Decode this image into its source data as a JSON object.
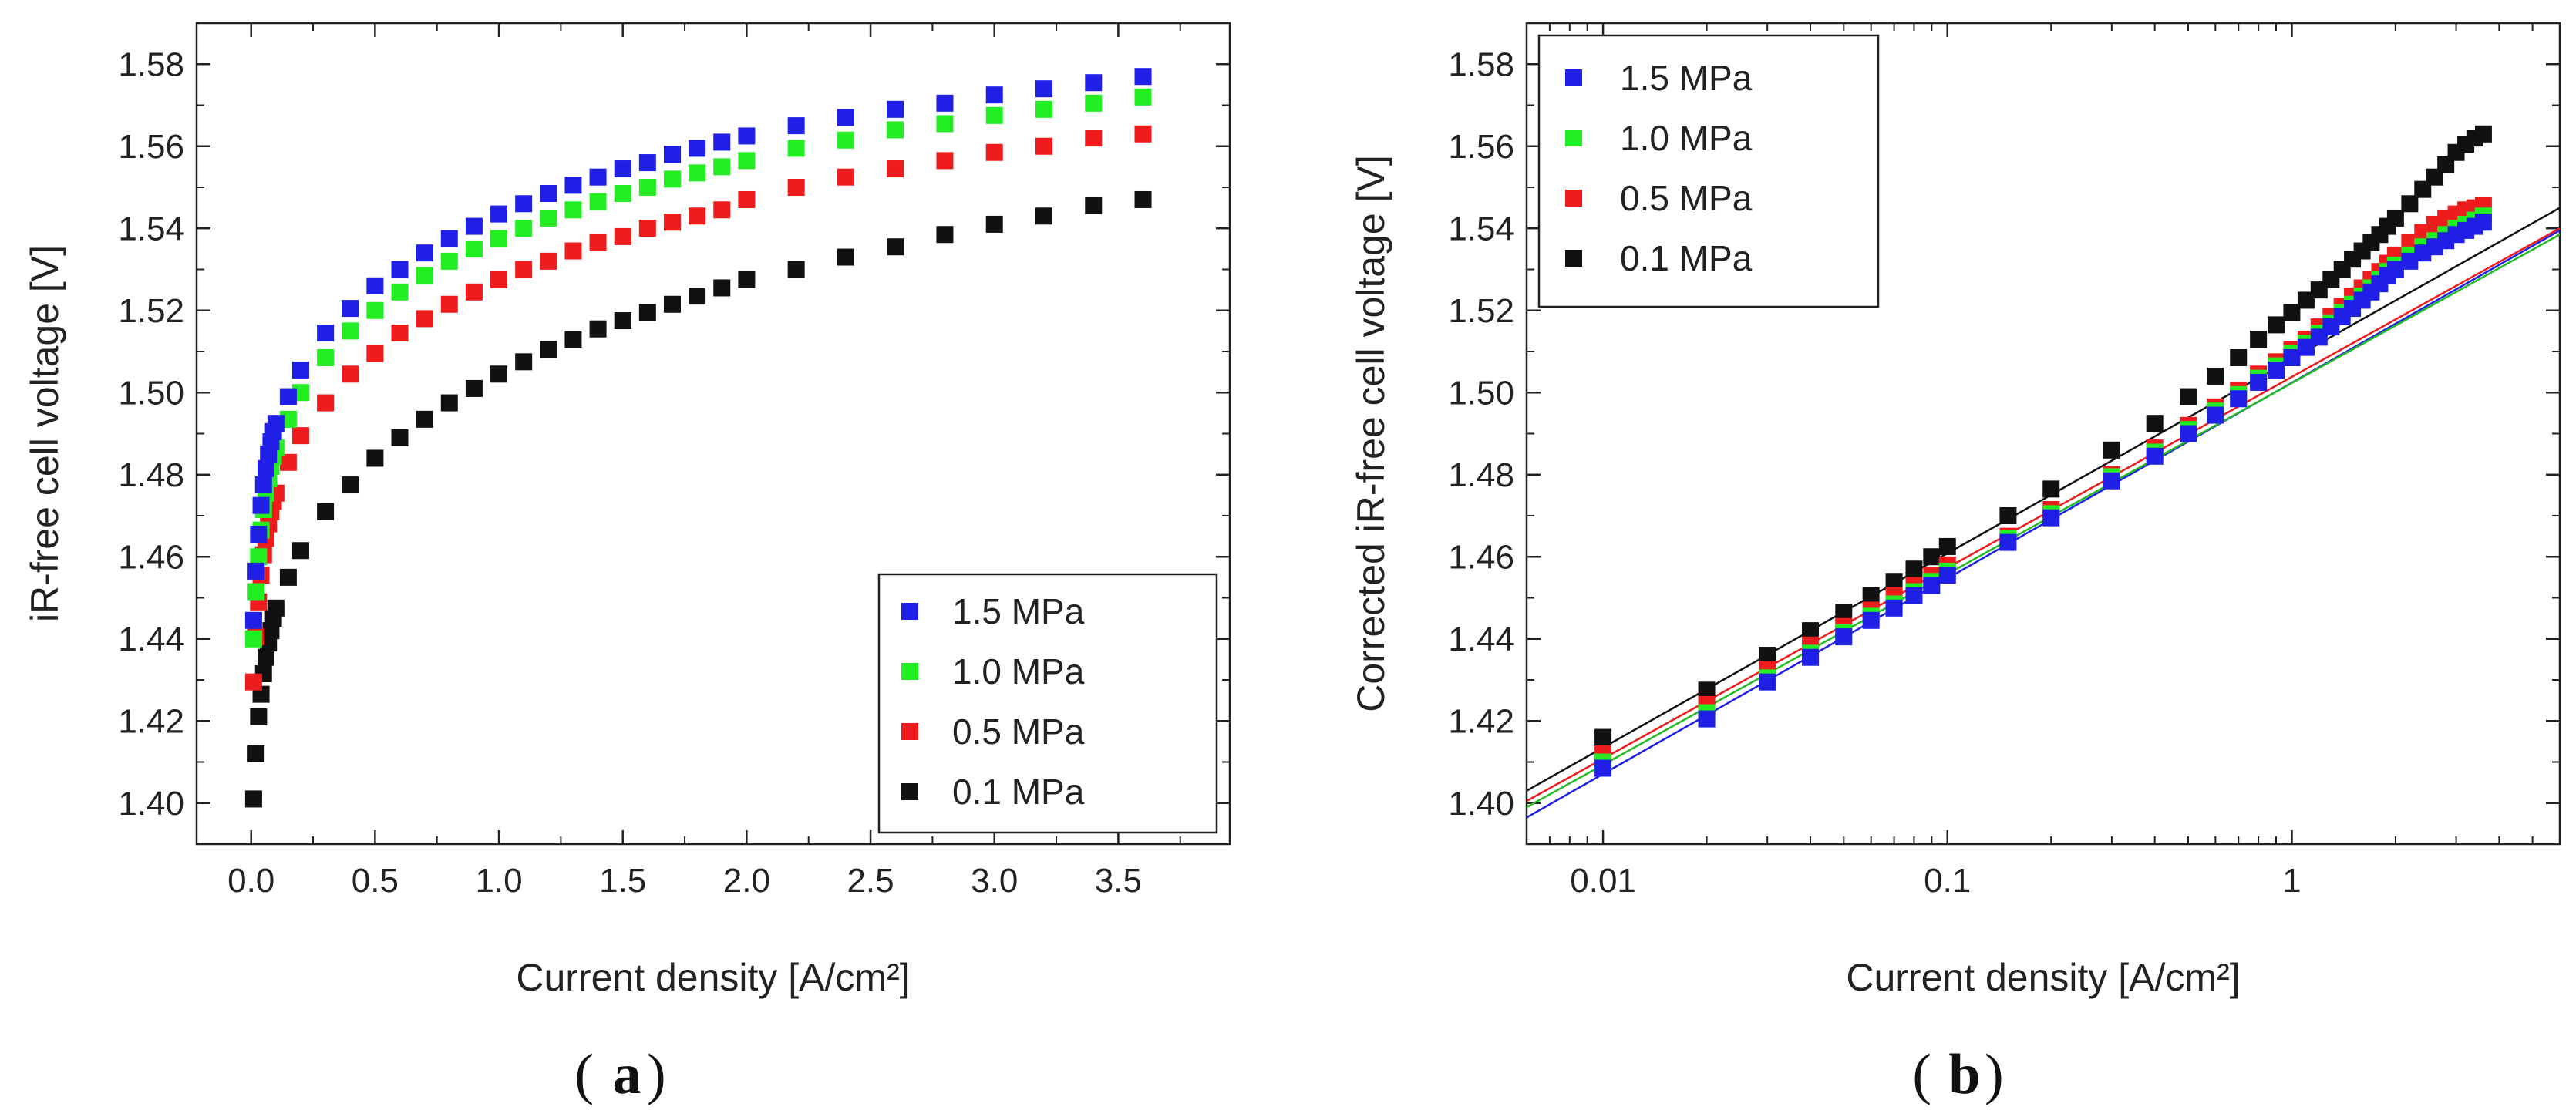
{
  "chart_data": [
    {
      "type": "scatter",
      "panel": "(a)",
      "caption_letter": "a",
      "xlabel": "Current density [A/cm²]",
      "ylabel": "iR-free cell voltage [V]",
      "xlim": [
        -0.22,
        3.95
      ],
      "ylim": [
        1.39,
        1.59
      ],
      "x_scale": "linear",
      "xticks": [
        0.0,
        0.5,
        1.0,
        1.5,
        2.0,
        2.5,
        3.0,
        3.5
      ],
      "xtick_labels": [
        "0.0",
        "0.5",
        "1.0",
        "1.5",
        "2.0",
        "2.5",
        "3.0",
        "3.5"
      ],
      "yticks": [
        1.4,
        1.42,
        1.44,
        1.46,
        1.48,
        1.5,
        1.52,
        1.54,
        1.56,
        1.58
      ],
      "ytick_labels": [
        "1.40",
        "1.42",
        "1.44",
        "1.46",
        "1.48",
        "1.50",
        "1.52",
        "1.54",
        "1.56",
        "1.58"
      ],
      "legend_position": "bottom-right",
      "x": [
        0.01,
        0.02,
        0.03,
        0.04,
        0.05,
        0.06,
        0.07,
        0.08,
        0.09,
        0.1,
        0.15,
        0.2,
        0.3,
        0.4,
        0.5,
        0.6,
        0.7,
        0.8,
        0.9,
        1.0,
        1.1,
        1.2,
        1.3,
        1.4,
        1.5,
        1.6,
        1.7,
        1.8,
        1.9,
        2.0,
        2.2,
        2.4,
        2.6,
        2.8,
        3.0,
        3.2,
        3.4,
        3.6
      ],
      "series": [
        {
          "name": "1.5 MPa",
          "color": "#1f1fe6",
          "values": [
            1.4445,
            1.4565,
            1.4655,
            1.4725,
            1.4775,
            1.4815,
            1.485,
            1.488,
            1.4905,
            1.4925,
            1.499,
            1.5055,
            1.5145,
            1.5205,
            1.526,
            1.53,
            1.534,
            1.5375,
            1.5405,
            1.5435,
            1.546,
            1.5485,
            1.5505,
            1.5525,
            1.5545,
            1.556,
            1.558,
            1.5595,
            1.561,
            1.5625,
            1.565,
            1.567,
            1.569,
            1.5705,
            1.5725,
            1.574,
            1.5755,
            1.577
          ]
        },
        {
          "name": "1.0 MPa",
          "color": "#22ee22",
          "values": [
            1.44,
            1.4515,
            1.46,
            1.4665,
            1.4715,
            1.4755,
            1.479,
            1.482,
            1.4845,
            1.4865,
            1.4935,
            1.5,
            1.5085,
            1.515,
            1.52,
            1.5245,
            1.5285,
            1.532,
            1.535,
            1.5375,
            1.54,
            1.5425,
            1.5445,
            1.5465,
            1.5485,
            1.55,
            1.552,
            1.5535,
            1.555,
            1.5565,
            1.5595,
            1.5615,
            1.564,
            1.5655,
            1.5675,
            1.569,
            1.5705,
            1.572
          ]
        },
        {
          "name": "0.5 MPa",
          "color": "#ee1c1c",
          "values": [
            1.4295,
            1.4405,
            1.449,
            1.4555,
            1.4605,
            1.4645,
            1.468,
            1.471,
            1.4735,
            1.4755,
            1.483,
            1.4895,
            1.4975,
            1.5045,
            1.5095,
            1.5145,
            1.518,
            1.5215,
            1.5245,
            1.5275,
            1.53,
            1.532,
            1.5345,
            1.5365,
            1.538,
            1.54,
            1.5415,
            1.543,
            1.5445,
            1.547,
            1.55,
            1.5525,
            1.5545,
            1.5565,
            1.5585,
            1.56,
            1.562,
            1.563
          ]
        },
        {
          "name": "0.1 MPa",
          "color": "#111111",
          "values": [
            1.401,
            1.412,
            1.421,
            1.4265,
            1.4315,
            1.4355,
            1.439,
            1.442,
            1.445,
            1.4475,
            1.455,
            1.4615,
            1.471,
            1.4775,
            1.484,
            1.489,
            1.4935,
            1.4975,
            1.501,
            1.5045,
            1.5075,
            1.5105,
            1.513,
            1.5155,
            1.5175,
            1.5195,
            1.5215,
            1.5235,
            1.5255,
            1.5275,
            1.53,
            1.533,
            1.5355,
            1.5385,
            1.541,
            1.543,
            1.5455,
            1.547
          ]
        }
      ]
    },
    {
      "type": "scatter",
      "panel": "(b)",
      "caption_letter": "b",
      "xlabel": "Current density [A/cm²]",
      "ylabel": "Corrected iR-free cell voltage [V]",
      "xlim": [
        0.006,
        6.0
      ],
      "ylim": [
        1.39,
        1.59
      ],
      "x_scale": "log",
      "xticks": [
        0.01,
        0.1,
        1
      ],
      "xtick_labels": [
        "0.01",
        "0.1",
        "1"
      ],
      "yticks": [
        1.4,
        1.42,
        1.44,
        1.46,
        1.48,
        1.5,
        1.52,
        1.54,
        1.56,
        1.58
      ],
      "ytick_labels": [
        "1.40",
        "1.42",
        "1.44",
        "1.46",
        "1.48",
        "1.50",
        "1.52",
        "1.54",
        "1.56",
        "1.58"
      ],
      "legend_position": "top-left",
      "x": [
        0.01,
        0.02,
        0.03,
        0.04,
        0.05,
        0.06,
        0.07,
        0.08,
        0.09,
        0.1,
        0.15,
        0.2,
        0.3,
        0.4,
        0.5,
        0.6,
        0.7,
        0.8,
        0.9,
        1.0,
        1.1,
        1.2,
        1.3,
        1.4,
        1.5,
        1.6,
        1.7,
        1.8,
        1.9,
        2.0,
        2.2,
        2.4,
        2.6,
        2.8,
        3.0,
        3.2,
        3.4,
        3.6
      ],
      "series": [
        {
          "name": "1.5 MPa",
          "color": "#1f1fe6",
          "values": [
            1.4085,
            1.4205,
            1.4295,
            1.4355,
            1.4405,
            1.4445,
            1.4475,
            1.4505,
            1.453,
            1.4555,
            1.4635,
            1.4695,
            1.4785,
            1.4845,
            1.49,
            1.4945,
            1.4985,
            1.5025,
            1.5055,
            1.5085,
            1.511,
            1.5135,
            1.516,
            1.5185,
            1.5205,
            1.5225,
            1.5245,
            1.5265,
            1.5285,
            1.53,
            1.532,
            1.534,
            1.5355,
            1.537,
            1.5385,
            1.5395,
            1.5405,
            1.5415
          ]
        },
        {
          "name": "1.0 MPa",
          "color": "#22ee22",
          "values": [
            1.41,
            1.422,
            1.4305,
            1.4365,
            1.4415,
            1.4455,
            1.4485,
            1.4515,
            1.454,
            1.4565,
            1.4645,
            1.4705,
            1.4795,
            1.4855,
            1.491,
            1.4955,
            1.4995,
            1.5035,
            1.5065,
            1.5095,
            1.512,
            1.5145,
            1.517,
            1.5195,
            1.5215,
            1.5235,
            1.5255,
            1.5275,
            1.5295,
            1.531,
            1.5335,
            1.5355,
            1.537,
            1.5385,
            1.54,
            1.541,
            1.542,
            1.543
          ]
        },
        {
          "name": "0.5 MPa",
          "color": "#ee1c1c",
          "values": [
            1.412,
            1.424,
            1.4325,
            1.4385,
            1.443,
            1.447,
            1.4505,
            1.453,
            1.4555,
            1.458,
            1.465,
            1.4715,
            1.48,
            1.4865,
            1.492,
            1.4965,
            1.5005,
            1.5045,
            1.5075,
            1.5105,
            1.513,
            1.516,
            1.5185,
            1.521,
            1.5235,
            1.5255,
            1.5275,
            1.5295,
            1.5315,
            1.5335,
            1.5365,
            1.539,
            1.541,
            1.5425,
            1.5435,
            1.5445,
            1.545,
            1.5455
          ]
        },
        {
          "name": "0.1 MPa",
          "color": "#111111",
          "values": [
            1.416,
            1.4275,
            1.436,
            1.442,
            1.4465,
            1.4505,
            1.454,
            1.457,
            1.46,
            1.4625,
            1.47,
            1.4765,
            1.486,
            1.4925,
            1.499,
            1.504,
            1.5085,
            1.513,
            1.5165,
            1.5195,
            1.5225,
            1.525,
            1.5275,
            1.53,
            1.5325,
            1.5345,
            1.5365,
            1.5385,
            1.5405,
            1.5425,
            1.546,
            1.5495,
            1.5525,
            1.5555,
            1.5585,
            1.5605,
            1.562,
            1.563
          ]
        }
      ],
      "fit_lines": [
        {
          "name": "1.5 MPa fit",
          "color": "#1f1fe6",
          "x": [
            0.006,
            6.0
          ],
          "y": [
            1.3965,
            1.5395
          ]
        },
        {
          "name": "1.0 MPa fit",
          "color": "#22bb22",
          "x": [
            0.006,
            6.0
          ],
          "y": [
            1.399,
            1.5385
          ]
        },
        {
          "name": "0.5 MPa fit",
          "color": "#ee1c1c",
          "x": [
            0.006,
            6.0
          ],
          "y": [
            1.4005,
            1.54
          ]
        },
        {
          "name": "0.1 MPa fit",
          "color": "#111111",
          "x": [
            0.006,
            6.0
          ],
          "y": [
            1.403,
            1.545
          ]
        }
      ]
    }
  ]
}
